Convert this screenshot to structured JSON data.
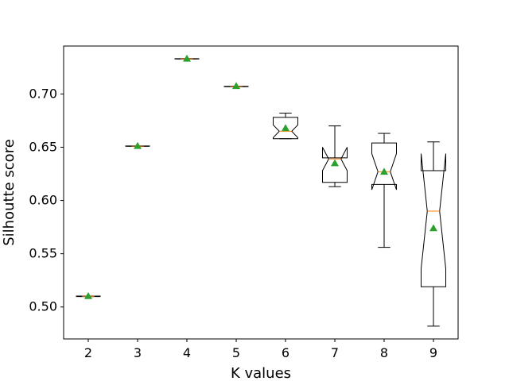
{
  "chart_data": {
    "type": "boxplot",
    "notched": true,
    "show_means": true,
    "title": "",
    "xlabel": "K values",
    "ylabel": "Silhoutte score",
    "ylim": [
      0.47,
      0.745
    ],
    "xlim": [
      1.5,
      9.5
    ],
    "categories": [
      "2",
      "3",
      "4",
      "5",
      "6",
      "7",
      "8",
      "9"
    ],
    "y_ticks": [
      0.5,
      0.55,
      0.6,
      0.65,
      0.7
    ],
    "y_tick_labels": [
      "0.50",
      "0.55",
      "0.60",
      "0.65",
      "0.70"
    ],
    "grid": false,
    "colors": {
      "median": "#ff7f0e",
      "mean_marker": "#2ca02c",
      "box": "#000000"
    },
    "boxes": [
      {
        "k": 2,
        "whislo": 0.5098,
        "q1": 0.5098,
        "median": 0.51,
        "q3": 0.5102,
        "whishi": 0.5102,
        "notch_lo": 0.5098,
        "notch_hi": 0.5102,
        "mean": 0.5102
      },
      {
        "k": 3,
        "whislo": 0.6508,
        "q1": 0.6508,
        "median": 0.651,
        "q3": 0.6512,
        "whishi": 0.6512,
        "notch_lo": 0.6508,
        "notch_hi": 0.6512,
        "mean": 0.6512
      },
      {
        "k": 4,
        "whislo": 0.7328,
        "q1": 0.7328,
        "median": 0.733,
        "q3": 0.7332,
        "whishi": 0.7332,
        "notch_lo": 0.7328,
        "notch_hi": 0.7332,
        "mean": 0.7332
      },
      {
        "k": 5,
        "whislo": 0.7068,
        "q1": 0.7068,
        "median": 0.707,
        "q3": 0.7072,
        "whishi": 0.7072,
        "notch_lo": 0.7068,
        "notch_hi": 0.7072,
        "mean": 0.7075
      },
      {
        "k": 6,
        "whislo": 0.658,
        "q1": 0.658,
        "median": 0.665,
        "q3": 0.678,
        "whishi": 0.682,
        "notch_lo": 0.659,
        "notch_hi": 0.671,
        "mean": 0.668
      },
      {
        "k": 7,
        "whislo": 0.613,
        "q1": 0.617,
        "median": 0.639,
        "q3": 0.64,
        "whishi": 0.67,
        "notch_lo": 0.628,
        "notch_hi": 0.65,
        "mean": 0.635
      },
      {
        "k": 8,
        "whislo": 0.556,
        "q1": 0.615,
        "median": 0.627,
        "q3": 0.654,
        "whishi": 0.663,
        "notch_lo": 0.61,
        "notch_hi": 0.644,
        "mean": 0.627
      },
      {
        "k": 9,
        "whislo": 0.482,
        "q1": 0.519,
        "median": 0.59,
        "q3": 0.628,
        "whishi": 0.655,
        "notch_lo": 0.536,
        "notch_hi": 0.644,
        "mean": 0.574
      }
    ]
  }
}
